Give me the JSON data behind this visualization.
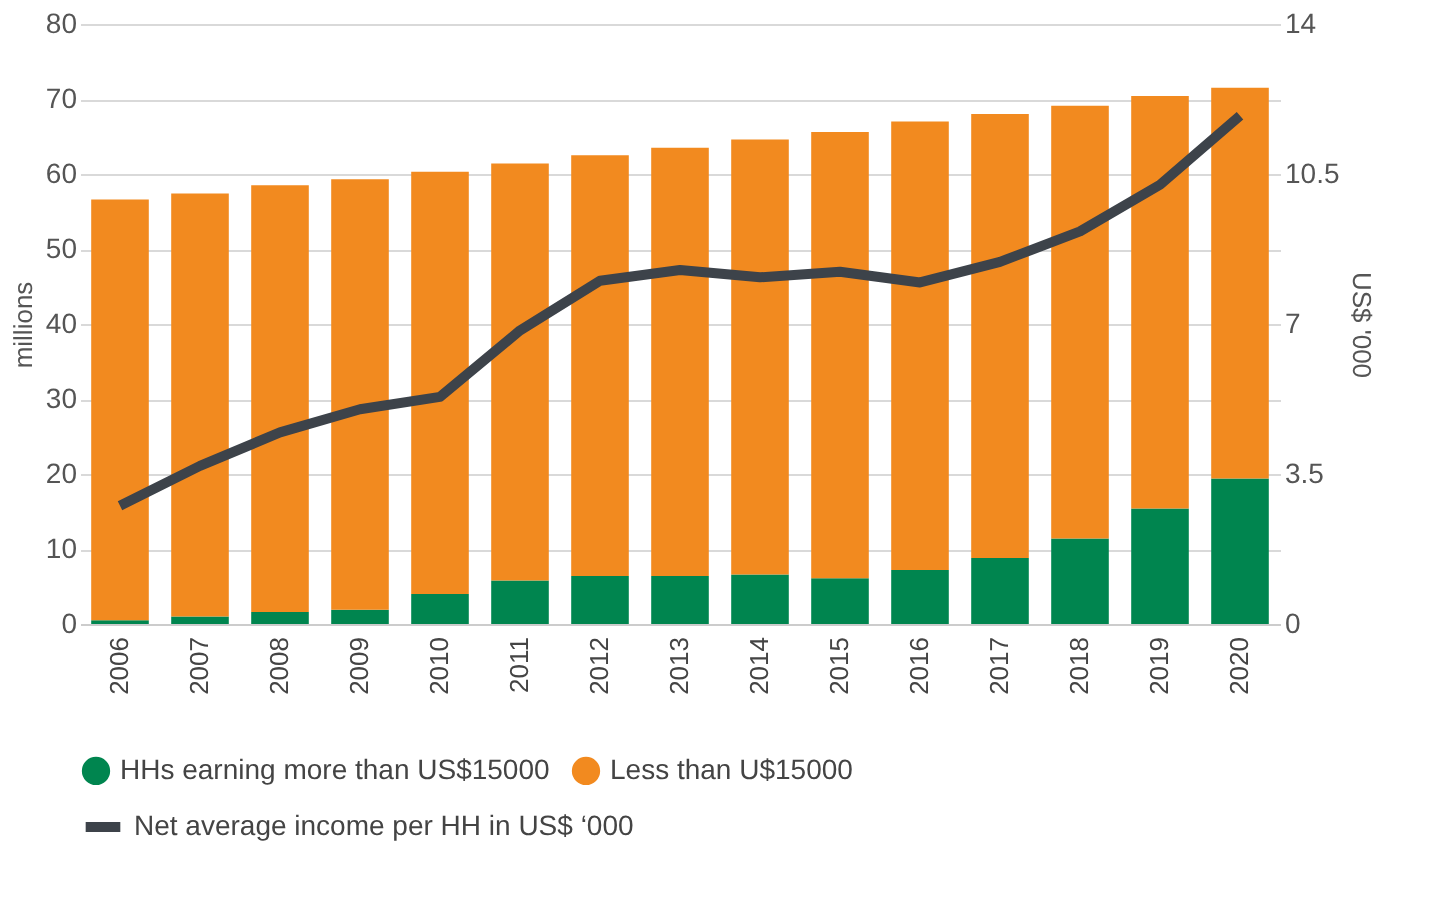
{
  "chart_data": {
    "type": "bar",
    "stacked": true,
    "categories": [
      "2006",
      "2007",
      "2008",
      "2009",
      "2010",
      "2011",
      "2012",
      "2013",
      "2014",
      "2015",
      "2016",
      "2017",
      "2018",
      "2019",
      "2020"
    ],
    "series": [
      {
        "name": "HHs earning more than US$15000",
        "color": "#00854f",
        "values": [
          0.5,
          1.0,
          1.6,
          1.9,
          4.0,
          5.8,
          6.4,
          6.4,
          6.6,
          6.1,
          7.2,
          8.8,
          11.4,
          15.4,
          19.4
        ]
      },
      {
        "name": "Less than U$15000",
        "color": "#f28a1f",
        "values": [
          56.1,
          56.4,
          56.9,
          57.4,
          56.3,
          55.6,
          56.1,
          57.1,
          58.0,
          59.5,
          59.8,
          59.2,
          57.7,
          55.0,
          52.1
        ]
      },
      {
        "name": "Net average income per HH in US$ ‘000",
        "color": "#3d434a",
        "type": "line",
        "axis": "y2",
        "values": [
          2.76,
          3.69,
          4.47,
          5.01,
          5.3,
          6.85,
          8.01,
          8.26,
          8.09,
          8.22,
          7.97,
          8.45,
          9.16,
          10.25,
          11.86
        ]
      }
    ],
    "ylabel": "millions",
    "y2label": "US$ '000",
    "ylim": [
      0,
      80
    ],
    "yticks": [
      0,
      10,
      20,
      30,
      40,
      50,
      60,
      70,
      80
    ],
    "y2lim": [
      0,
      14
    ],
    "y2ticks": [
      0,
      3.5,
      7,
      10.5,
      14
    ],
    "grid": "y",
    "legend": "bottom",
    "line_style": "solid",
    "marker": "none"
  }
}
